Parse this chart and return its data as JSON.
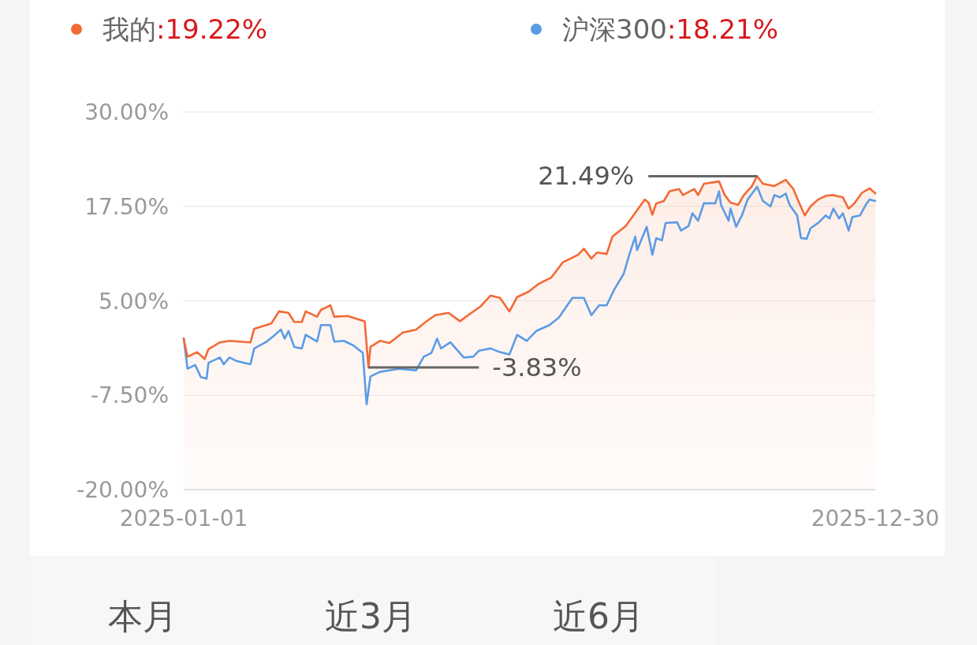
{
  "chart_data": {
    "type": "line",
    "legend": "top",
    "grid": "y",
    "marker": "none",
    "line_style": "solid",
    "xlim": [
      "2025-01-01",
      "2025-12-30"
    ],
    "xticks": [
      "2025-01-01",
      "2025-12-30"
    ],
    "ylim": [
      -20,
      30
    ],
    "yticks": [
      {
        "value": 30,
        "label": "30.00%"
      },
      {
        "value": 17.5,
        "label": "17.50%"
      },
      {
        "value": 5,
        "label": "5.00%"
      },
      {
        "value": -7.5,
        "label": "-7.50%"
      },
      {
        "value": -20,
        "label": "-20.00%"
      }
    ],
    "series": [
      {
        "name": "我的",
        "color": "#f26a35",
        "x": [
          "2025-01-01",
          "2025-01-03",
          "2025-01-08",
          "2025-01-12",
          "2025-01-14",
          "2025-01-20",
          "2025-01-25",
          "2025-02-05",
          "2025-02-07",
          "2025-02-16",
          "2025-02-20",
          "2025-02-25",
          "2025-02-28",
          "2025-03-04",
          "2025-03-06",
          "2025-03-12",
          "2025-03-14",
          "2025-03-19",
          "2025-03-21",
          "2025-03-28",
          "2025-04-06",
          "2025-04-08",
          "2025-04-09",
          "2025-04-14",
          "2025-04-19",
          "2025-04-26",
          "2025-05-03",
          "2025-05-08",
          "2025-05-13",
          "2025-05-20",
          "2025-05-26",
          "2025-06-01",
          "2025-06-06",
          "2025-06-11",
          "2025-06-16",
          "2025-06-21",
          "2025-06-25",
          "2025-07-01",
          "2025-07-06",
          "2025-07-13",
          "2025-07-19",
          "2025-07-27",
          "2025-07-30",
          "2025-08-03",
          "2025-08-06",
          "2025-08-11",
          "2025-08-14",
          "2025-08-21",
          "2025-08-27",
          "2025-08-31",
          "2025-09-02",
          "2025-09-04",
          "2025-09-06",
          "2025-09-10",
          "2025-09-13",
          "2025-09-18",
          "2025-09-20",
          "2025-09-26",
          "2025-09-28",
          "2025-10-01",
          "2025-10-09",
          "2025-10-12",
          "2025-10-15",
          "2025-10-19",
          "2025-10-22",
          "2025-10-26",
          "2025-10-29",
          "2025-11-01",
          "2025-11-07",
          "2025-11-13",
          "2025-11-17",
          "2025-11-20",
          "2025-11-23",
          "2025-11-26",
          "2025-11-30",
          "2025-12-04",
          "2025-12-08",
          "2025-12-13",
          "2025-12-16",
          "2025-12-19",
          "2025-12-23",
          "2025-12-27",
          "2025-12-30"
        ],
        "values": [
          0,
          -2.4,
          -1.8,
          -2.7,
          -1.4,
          -0.5,
          -0.3,
          -0.5,
          1.3,
          2.0,
          3.6,
          3.4,
          2.2,
          2.2,
          3.6,
          2.9,
          3.8,
          4.4,
          2.9,
          3.0,
          2.3,
          -3.83,
          -1.1,
          -0.3,
          -0.6,
          0.8,
          1.2,
          2.2,
          3.1,
          3.4,
          2.3,
          3.4,
          4.3,
          5.7,
          5.4,
          3.6,
          5.5,
          6.2,
          7.2,
          8.1,
          10.1,
          11.1,
          11.9,
          10.6,
          11.4,
          11.2,
          13.5,
          14.9,
          17.0,
          18.4,
          18.0,
          16.4,
          17.9,
          18.2,
          19.5,
          19.8,
          19.0,
          19.8,
          19.0,
          20.5,
          20.8,
          19.0,
          18.0,
          17.7,
          19.0,
          20.1,
          21.49,
          20.5,
          20.2,
          21.0,
          19.8,
          18.0,
          16.3,
          17.5,
          18.4,
          18.9,
          19.0,
          18.7,
          17.2,
          17.9,
          19.3,
          19.9,
          19.22
        ]
      },
      {
        "name": "沪深300",
        "color": "#5b9be6",
        "x": [
          "2025-01-01",
          "2025-01-03",
          "2025-01-07",
          "2025-01-10",
          "2025-01-13",
          "2025-01-14",
          "2025-01-20",
          "2025-01-22",
          "2025-01-25",
          "2025-01-29",
          "2025-02-05",
          "2025-02-07",
          "2025-02-13",
          "2025-02-17",
          "2025-02-21",
          "2025-02-23",
          "2025-02-25",
          "2025-02-28",
          "2025-03-04",
          "2025-03-06",
          "2025-03-12",
          "2025-03-14",
          "2025-03-19",
          "2025-03-21",
          "2025-03-26",
          "2025-03-31",
          "2025-04-05",
          "2025-04-07",
          "2025-04-09",
          "2025-04-14",
          "2025-04-24",
          "2025-05-03",
          "2025-05-07",
          "2025-05-11",
          "2025-05-14",
          "2025-05-16",
          "2025-05-21",
          "2025-05-28",
          "2025-06-02",
          "2025-06-05",
          "2025-06-11",
          "2025-06-16",
          "2025-06-21",
          "2025-06-25",
          "2025-06-30",
          "2025-07-05",
          "2025-07-12",
          "2025-07-17",
          "2025-07-24",
          "2025-07-30",
          "2025-08-03",
          "2025-08-07",
          "2025-08-11",
          "2025-08-15",
          "2025-08-20",
          "2025-08-23",
          "2025-08-26",
          "2025-08-27",
          "2025-09-01",
          "2025-09-04",
          "2025-09-06",
          "2025-09-09",
          "2025-09-11",
          "2025-09-17",
          "2025-09-19",
          "2025-09-23",
          "2025-09-25",
          "2025-09-28",
          "2025-10-01",
          "2025-10-07",
          "2025-10-09",
          "2025-10-10",
          "2025-10-14",
          "2025-10-15",
          "2025-10-18",
          "2025-10-21",
          "2025-10-24",
          "2025-10-29",
          "2025-11-01",
          "2025-11-05",
          "2025-11-07",
          "2025-11-10",
          "2025-11-13",
          "2025-11-15",
          "2025-11-19",
          "2025-11-21",
          "2025-11-24",
          "2025-11-26",
          "2025-11-30",
          "2025-12-04",
          "2025-12-06",
          "2025-12-08",
          "2025-12-11",
          "2025-12-13",
          "2025-12-16",
          "2025-12-18",
          "2025-12-22",
          "2025-12-25",
          "2025-12-27",
          "2025-12-30"
        ],
        "values": [
          0.0,
          -4.0,
          -3.5,
          -5.1,
          -5.3,
          -3.2,
          -2.5,
          -3.4,
          -2.5,
          -3.0,
          -3.4,
          -1.3,
          -0.5,
          0.3,
          1.2,
          0.0,
          1.0,
          -1.1,
          -1.3,
          0.5,
          -0.4,
          1.8,
          1.8,
          -0.4,
          -0.3,
          -0.9,
          -1.9,
          -8.7,
          -5.0,
          -4.4,
          -4.0,
          -4.2,
          -2.4,
          -1.9,
          0.0,
          -1.3,
          -0.5,
          -2.5,
          -2.4,
          -1.6,
          -1.3,
          -1.8,
          -2.1,
          0.5,
          -0.3,
          1.0,
          1.8,
          2.8,
          5.4,
          5.4,
          3.1,
          4.4,
          4.4,
          6.5,
          8.6,
          11.2,
          13.5,
          11.7,
          14.8,
          11.1,
          13.3,
          13.0,
          15.3,
          15.4,
          14.3,
          14.9,
          16.6,
          15.6,
          17.9,
          17.9,
          19.5,
          17.7,
          15.6,
          17.2,
          14.8,
          16.3,
          18.4,
          20.1,
          18.2,
          17.5,
          19.0,
          18.7,
          19.2,
          17.7,
          16.3,
          13.3,
          13.2,
          14.6,
          15.3,
          16.3,
          15.9,
          17.2,
          15.9,
          16.6,
          14.3,
          16.1,
          16.3,
          17.7,
          18.4,
          18.21
        ]
      }
    ],
    "annotations": [
      ":19.22%",
      ":18.21%",
      {
        "text": "21.49%",
        "x": "2025-10-29",
        "y": 21.49
      },
      {
        "text": "-3.83%",
        "x": "2025-04-08",
        "y": -3.83
      },
      "本月",
      "近3月",
      "近6月"
    ]
  }
}
